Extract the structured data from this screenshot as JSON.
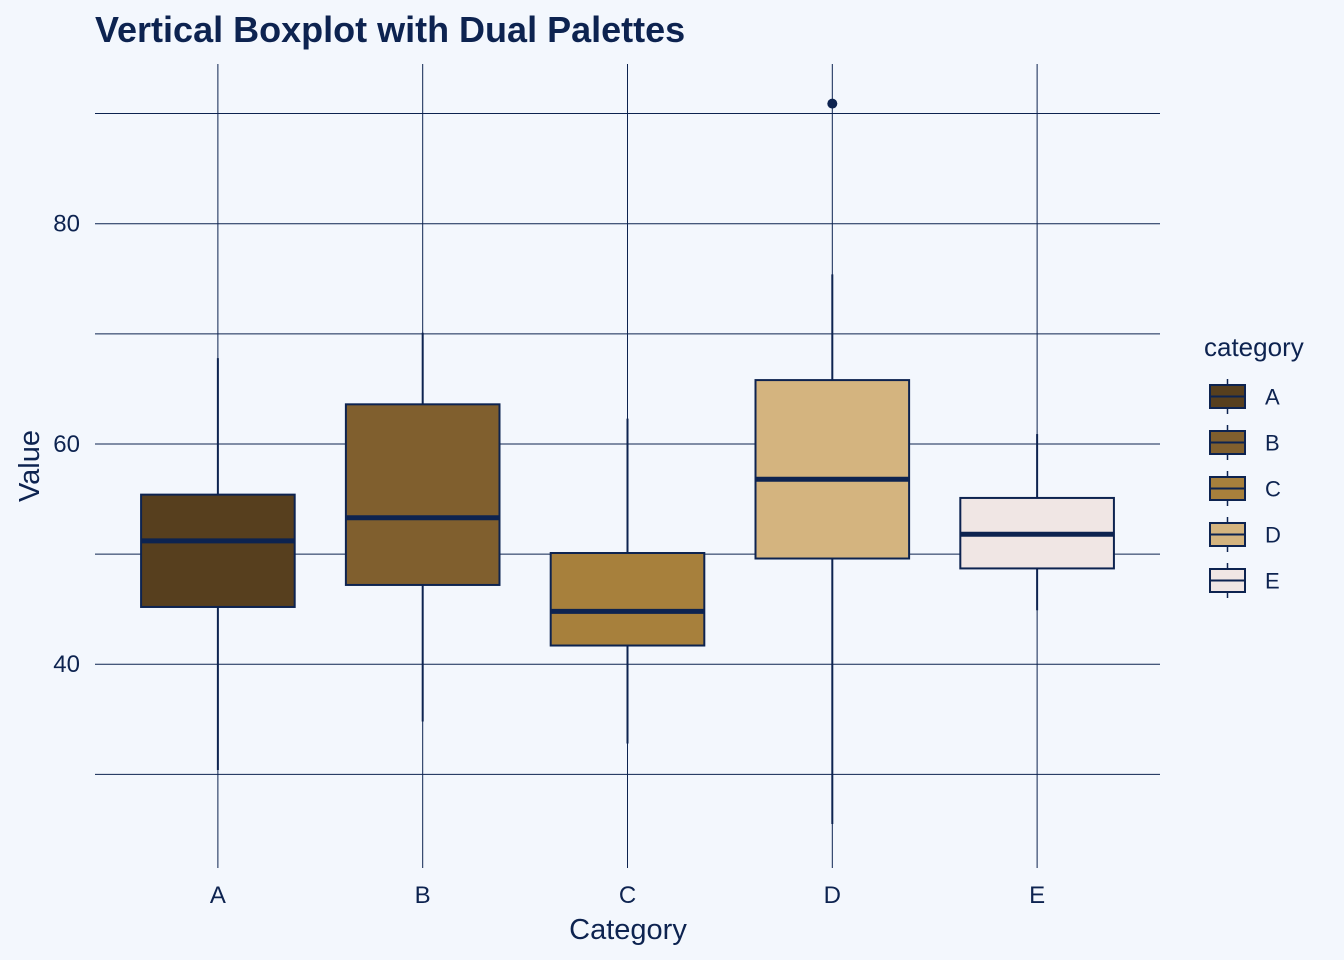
{
  "chart_data": {
    "type": "boxplot",
    "title": "Vertical Boxplot with Dual Palettes",
    "xlabel": "Category",
    "ylabel": "Value",
    "ylim": [
      21.5,
      94.5
    ],
    "yticks": [
      40,
      60,
      80
    ],
    "grid": true,
    "legend": {
      "title": "category",
      "position": "right"
    },
    "categories": [
      "A",
      "B",
      "C",
      "D",
      "E"
    ],
    "boxes": [
      {
        "category": "A",
        "min": 30.4,
        "q1": 45.2,
        "median": 51.2,
        "q3": 55.4,
        "max": 67.8,
        "outliers": [],
        "color": "#573f1e"
      },
      {
        "category": "B",
        "min": 34.8,
        "q1": 47.2,
        "median": 53.3,
        "q3": 63.6,
        "max": 70.1,
        "outliers": [],
        "color": "#805f2e"
      },
      {
        "category": "C",
        "min": 32.8,
        "q1": 41.7,
        "median": 44.8,
        "q3": 50.1,
        "max": 62.3,
        "outliers": [],
        "color": "#a7803c"
      },
      {
        "category": "D",
        "min": 25.5,
        "q1": 49.6,
        "median": 56.8,
        "q3": 65.8,
        "max": 75.4,
        "outliers": [
          90.9
        ],
        "color": "#d4b47f"
      },
      {
        "category": "E",
        "min": 44.9,
        "q1": 48.7,
        "median": 51.8,
        "q3": 55.1,
        "max": 60.9,
        "outliers": [],
        "color": "#f0e6e4"
      }
    ],
    "line_color": "#0d2350"
  }
}
